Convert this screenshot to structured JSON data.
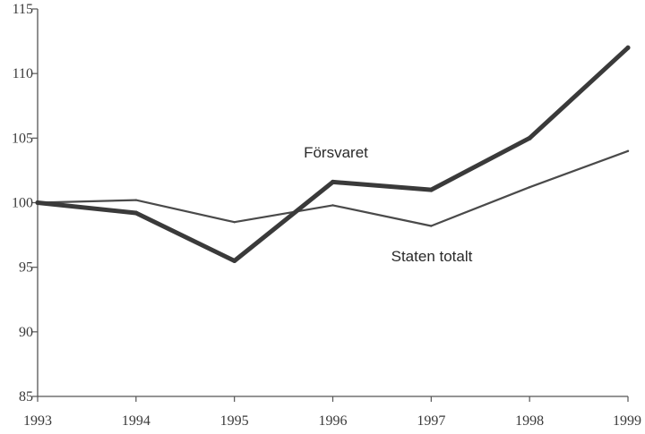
{
  "chart_data": {
    "type": "line",
    "title": "",
    "xlabel": "",
    "ylabel": "",
    "x": [
      1993,
      1994,
      1995,
      1996,
      1997,
      1998,
      1999
    ],
    "x_tick_labels": [
      "1993",
      "1994",
      "1995",
      "1996",
      "1997",
      "1998",
      "1999"
    ],
    "y_ticks": [
      85,
      90,
      95,
      100,
      105,
      110,
      115
    ],
    "y_tick_labels": [
      "85",
      "90",
      "95",
      "100",
      "105",
      "110",
      "115"
    ],
    "ylim": [
      85,
      115
    ],
    "xlim": [
      1993,
      1999
    ],
    "grid": false,
    "legend": "inline labels",
    "series": [
      {
        "name": "Försvaret",
        "values": [
          100,
          99.2,
          95.5,
          101.6,
          101.0,
          105.0,
          112.0
        ],
        "color": "#3a3a3a",
        "style": "thick"
      },
      {
        "name": "Staten totalt",
        "values": [
          100,
          100.2,
          98.5,
          99.8,
          98.2,
          101.2,
          104.0
        ],
        "color": "#4a4a4a",
        "style": "thin"
      }
    ]
  }
}
